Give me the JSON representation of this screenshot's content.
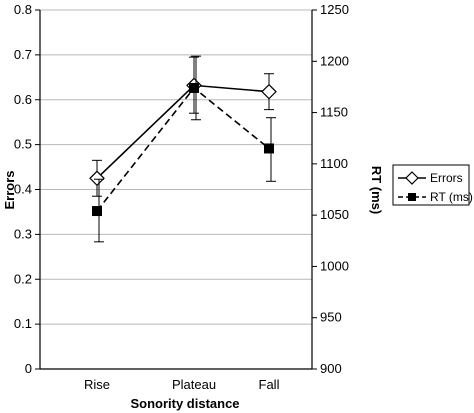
{
  "chart_data": {
    "type": "line",
    "title": "",
    "xlabel": "Sonority distance",
    "ylabel_left": "Errors",
    "ylabel_right": "RT (ms)",
    "categories": [
      "Rise",
      "Plateau",
      "Fall"
    ],
    "ylim_left": [
      0,
      0.8
    ],
    "yticks_left": [
      "0",
      "0.1",
      "0.2",
      "0.3",
      "0.4",
      "0.5",
      "0.6",
      "0.7",
      "0.8"
    ],
    "ylim_right": [
      900,
      1250
    ],
    "yticks_right": [
      "900",
      "950",
      "1000",
      "1050",
      "1100",
      "1150",
      "1200",
      "1250"
    ],
    "grid": true,
    "legend_position": "right",
    "series": [
      {
        "name": "Errors",
        "axis": "left",
        "marker": "open-diamond",
        "line": "solid",
        "values": [
          0.425,
          0.632,
          0.618
        ],
        "error_low": [
          0.385,
          0.57,
          0.578
        ],
        "error_high": [
          0.465,
          0.695,
          0.658
        ]
      },
      {
        "name": "RT (ms)",
        "axis": "right",
        "marker": "filled-square",
        "line": "dashed",
        "values": [
          1054,
          1174,
          1115
        ],
        "error_low": [
          1024,
          1143,
          1083
        ],
        "error_high": [
          1085,
          1205,
          1145
        ]
      }
    ]
  }
}
